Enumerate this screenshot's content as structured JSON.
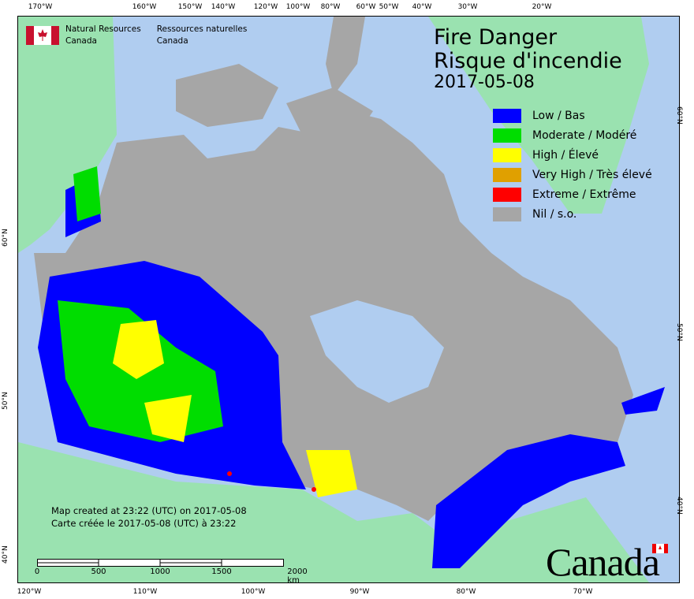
{
  "header": {
    "org_en": "Natural Resources",
    "org_en2": "Canada",
    "org_fr": "Ressources naturelles",
    "org_fr2": "Canada"
  },
  "title": {
    "line1": "Fire Danger",
    "line2": "Risque d'incendie",
    "date": "2017-05-08"
  },
  "legend": [
    {
      "label": "Low / Bas",
      "color": "#0000ff"
    },
    {
      "label": "Moderate / Modéré",
      "color": "#00dd00"
    },
    {
      "label": "High / Élevé",
      "color": "#ffff00"
    },
    {
      "label": "Very High / Très élevé",
      "color": "#e0a000"
    },
    {
      "label": "Extreme / Extrême",
      "color": "#ff0000"
    },
    {
      "label": "Nil / s.o.",
      "color": "#a6a6a6"
    }
  ],
  "created": {
    "en": "Map created at 23:22 (UTC) on 2017-05-08",
    "fr": "Carte créée le 2017-05-08 (UTC) à 23:22"
  },
  "scale": {
    "labels": [
      "0",
      "500",
      "1000",
      "1500",
      "2000  km"
    ]
  },
  "axes": {
    "top": [
      "170°W",
      "160°W",
      "150°W",
      "140°W",
      "120°W",
      "100°W",
      "80°W",
      "60°W",
      "50°W",
      "40°W",
      "30°W",
      "20°W"
    ],
    "bottom": [
      "120°W",
      "110°W",
      "100°W",
      "90°W",
      "80°W",
      "70°W"
    ],
    "left": [
      "60°N",
      "50°N",
      "40°N"
    ],
    "right": [
      "60°N",
      "50°N",
      "40°N"
    ]
  },
  "wordmark": "Canada",
  "colors": {
    "water": "#b0cdf0",
    "foreign_land": "#9ae2b0",
    "nil": "#a6a6a6"
  }
}
